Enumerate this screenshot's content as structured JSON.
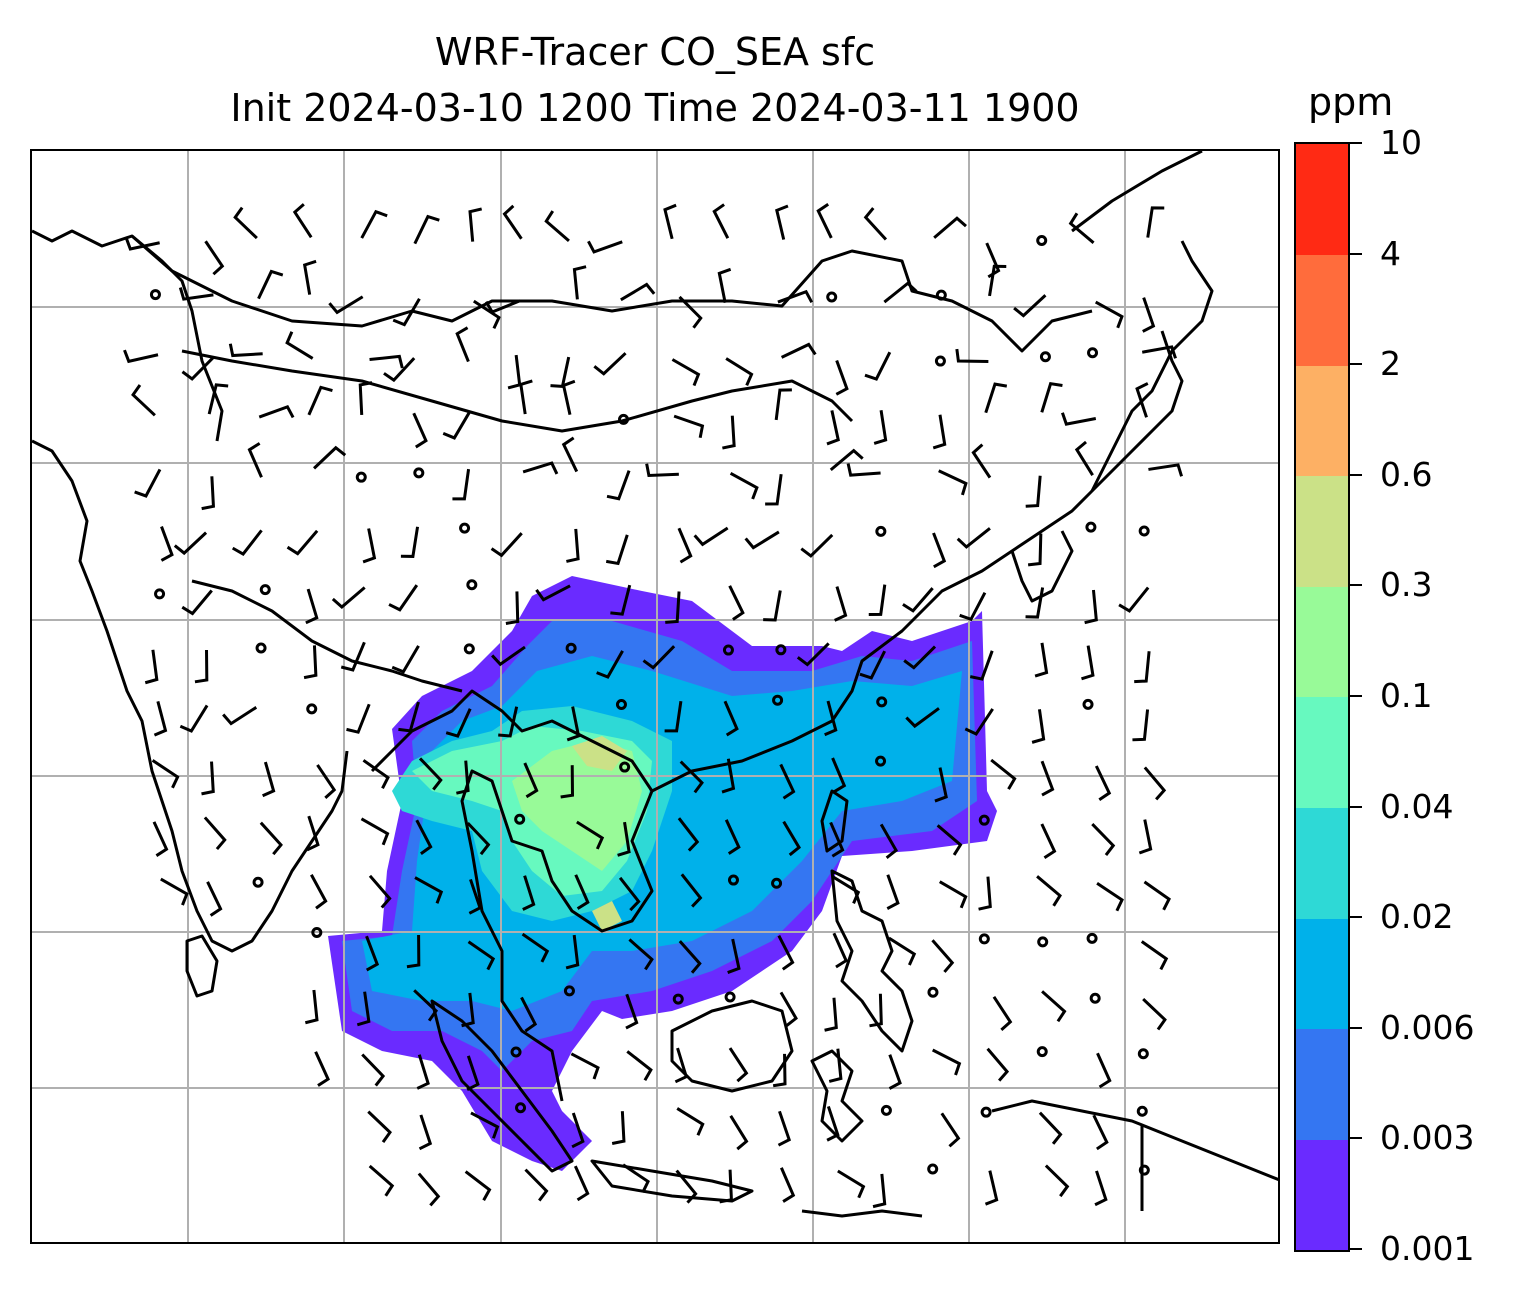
{
  "title_line1": "WRF-Tracer CO_SEA sfc",
  "title_line2": "Init 2024-03-10 1200 Time 2024-03-11 1900",
  "colorbar": {
    "unit": "ppm",
    "levels": [
      "0.001",
      "0.003",
      "0.006",
      "0.02",
      "0.04",
      "0.1",
      "0.3",
      "0.6",
      "2",
      "4",
      "10"
    ],
    "colors": [
      "#6a2bff",
      "#3476f2",
      "#00b1ea",
      "#2ed9d6",
      "#67f9bf",
      "#98fa98",
      "#cbe187",
      "#fdb064",
      "#ff6c3c",
      "#ff2a14"
    ]
  },
  "map": {
    "gridlines": true,
    "overlays": [
      "coastlines",
      "country-borders",
      "wind-barbs",
      "tracer-concentration-fill"
    ]
  }
}
